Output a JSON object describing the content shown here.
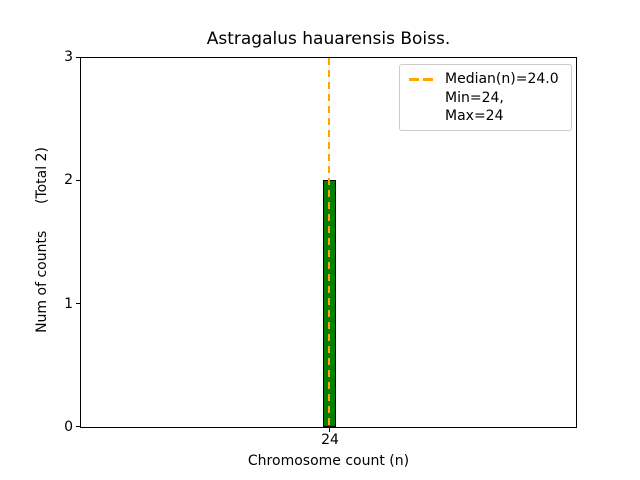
{
  "chart_data": {
    "type": "bar",
    "title": "Astragalus hauarensis Boiss.",
    "xlabel": "Chromosome count (n)",
    "ylabel": "Num of counts      (Total 2)",
    "categories": [
      "24"
    ],
    "values": [
      2
    ],
    "total_counts": 2,
    "x_value": 24,
    "ylim": [
      0,
      3
    ],
    "yticks": [
      "0",
      "1",
      "2",
      "3"
    ],
    "xticks": [
      "24"
    ],
    "bar_color": "#008000",
    "bar_edge_color": "#000000",
    "grid": false,
    "median_line": {
      "value": 24.0,
      "color": "#FFA500",
      "style": "dashed",
      "orientation": "vertical"
    },
    "legend": {
      "position": "upper right",
      "entries": [
        "Median(n)=24.0",
        "Min=24, Max=24"
      ]
    },
    "stats": {
      "median": 24.0,
      "min": 24,
      "max": 24
    }
  }
}
